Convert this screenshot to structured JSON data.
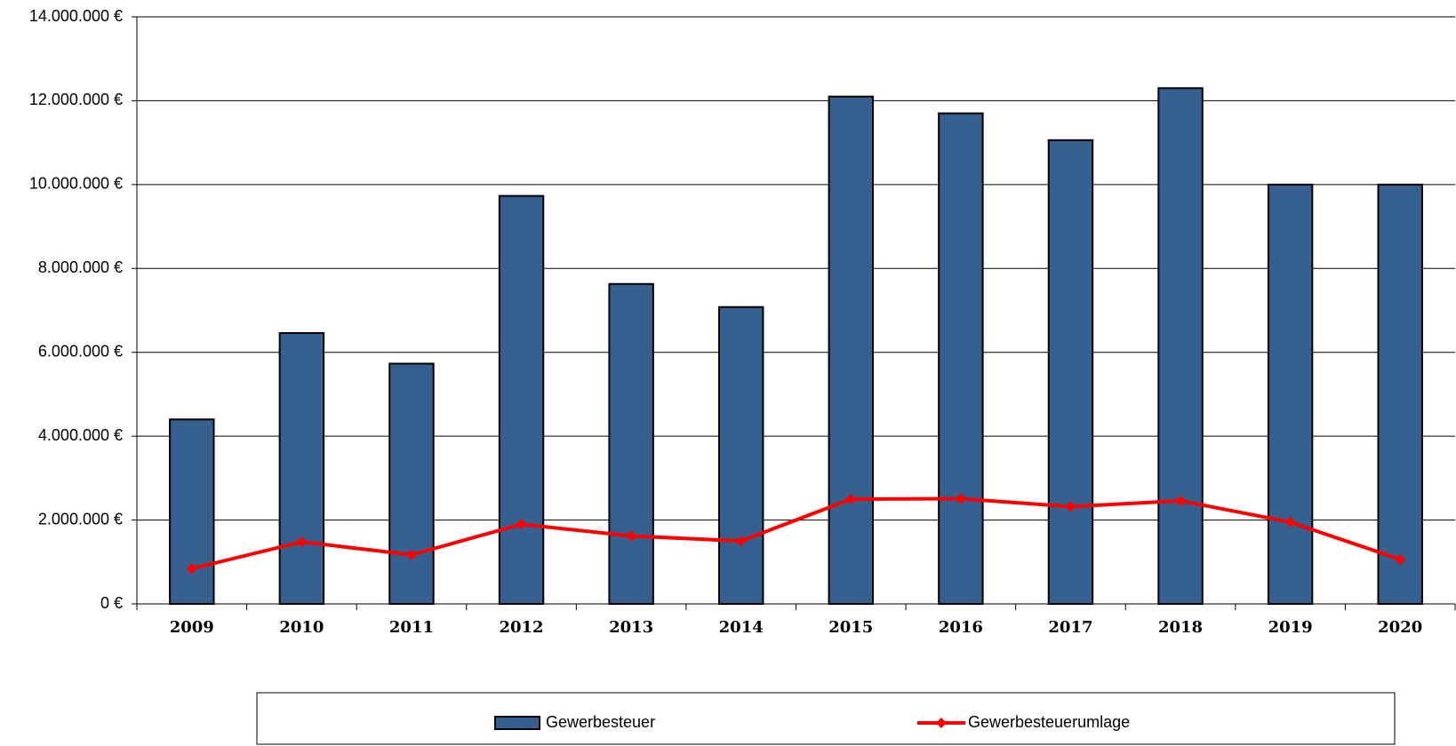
{
  "chart_data": {
    "type": "bar",
    "categories": [
      "2009",
      "2010",
      "2011",
      "2012",
      "2013",
      "2014",
      "2015",
      "2016",
      "2017",
      "2018",
      "2019",
      "2020"
    ],
    "series": [
      {
        "name": "Gewerbesteuer",
        "type": "bar",
        "color": "#36608f",
        "values": [
          4400000.0,
          6460000.0,
          5730000.0,
          9730000.0,
          7630000.0,
          7080000.0,
          12100000.0,
          11700000.0,
          11060000.0,
          12300000.0,
          10000000.0,
          10000000.0
        ]
      },
      {
        "name": "Gewerbesteuerumlage",
        "type": "line",
        "color": "#ff0000",
        "values": [
          840000.0,
          1480000.0,
          1170000.0,
          1900000.0,
          1620000.0,
          1500000.0,
          2500000.0,
          2510000.0,
          2320000.0,
          2460000.0,
          1950000.0,
          1060000.0
        ]
      }
    ],
    "ylim": [
      0,
      14000000
    ],
    "yticks": [
      {
        "value": 0,
        "label": "0 €"
      },
      {
        "value": 2000000,
        "label": "2.000.000 €"
      },
      {
        "value": 4000000,
        "label": "4.000.000 €"
      },
      {
        "value": 6000000,
        "label": "6.000.000 €"
      },
      {
        "value": 8000000,
        "label": "8.000.000 €"
      },
      {
        "value": 10000000,
        "label": "10.000.000 €"
      },
      {
        "value": 12000000,
        "label": "12.000.000 €"
      },
      {
        "value": 14000000,
        "label": "14.000.000 €"
      }
    ],
    "grid": true,
    "legend": "bottom"
  }
}
